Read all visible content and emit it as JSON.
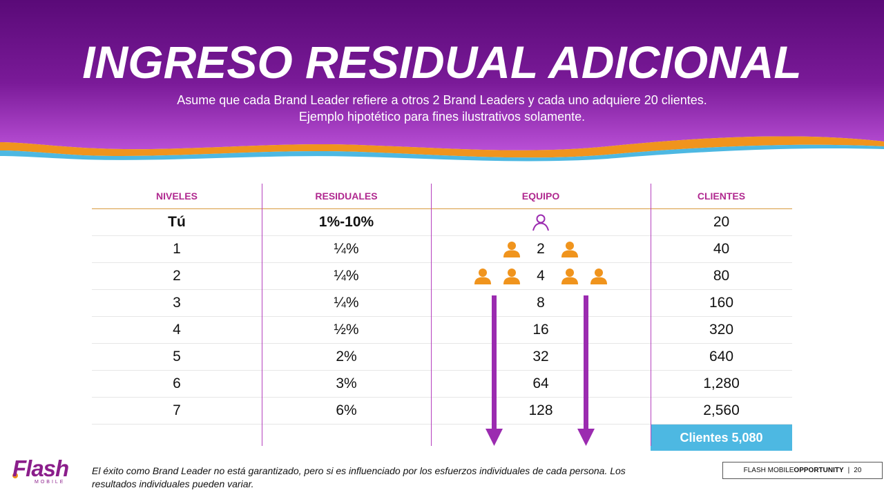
{
  "header": {
    "title": "INGRESO RESIDUAL ADICIONAL",
    "subtitle_line1": "Asume que cada Brand Leader refiere a otros 2 Brand Leaders y cada uno adquiere 20 clientes.",
    "subtitle_line2": "Ejemplo hipotético para fines ilustrativos solamente."
  },
  "colors": {
    "header_purple_top": "#5a0a78",
    "header_purple_bottom": "#b94fd6",
    "wave_orange": "#f0941d",
    "wave_blue": "#4db8e2",
    "column_header": "#b0288f",
    "person_icon": "#f0941d",
    "arrow": "#9b2bb0",
    "total_bg": "#4db8e2"
  },
  "table": {
    "headers": {
      "niveles": "NIVELES",
      "residuales": "RESIDUALES",
      "equipo": "EQUIPO",
      "clientes": "CLIENTES"
    },
    "rows": [
      {
        "nivel": "Tú",
        "residual": "1%-10%",
        "equipo": "",
        "clientes": "20"
      },
      {
        "nivel": "1",
        "residual": "¼%",
        "equipo": "2",
        "clientes": "40"
      },
      {
        "nivel": "2",
        "residual": "¼%",
        "equipo": "4",
        "clientes": "80"
      },
      {
        "nivel": "3",
        "residual": "¼%",
        "equipo": "8",
        "clientes": "160"
      },
      {
        "nivel": "4",
        "residual": "½%",
        "equipo": "16",
        "clientes": "320"
      },
      {
        "nivel": "5",
        "residual": "2%",
        "equipo": "32",
        "clientes": "640"
      },
      {
        "nivel": "6",
        "residual": "3%",
        "equipo": "64",
        "clientes": "1,280"
      },
      {
        "nivel": "7",
        "residual": "6%",
        "equipo": "128",
        "clientes": "2,560"
      }
    ],
    "total": "Clientes 5,080",
    "icons": {
      "you": "person-outline-icon",
      "member": "person-icon",
      "flow": "arrow-down-icon"
    }
  },
  "footer": {
    "logo_text": "Flash",
    "logo_sub": "MOBILE",
    "disclaimer": "El éxito como Brand Leader no está garantizado, pero si es influenciado por los esfuerzos individuales  de cada persona. Los resultados individuales pueden variar.",
    "brand_normal": "FLASH MOBILE ",
    "brand_bold": "OPPORTUNITY",
    "separator": "|",
    "page_number": "20"
  }
}
